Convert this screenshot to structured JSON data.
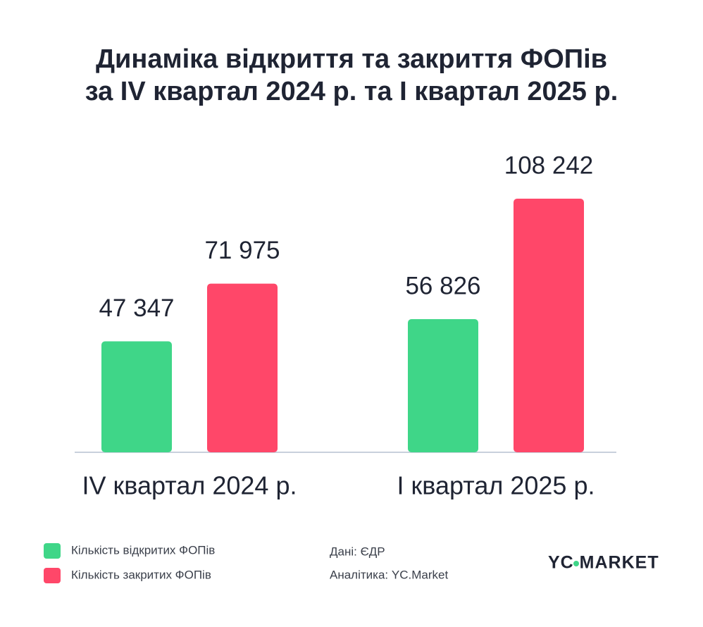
{
  "chart_data": {
    "type": "bar",
    "title": [
      "Динаміка відкриття та закриття ФОПів",
      "за IV квартал 2024 р. та I квартал 2025 р."
    ],
    "categories": [
      "IV квартал 2024 р.",
      "I квартал 2025 р."
    ],
    "series": [
      {
        "name": "Кількість відкритих ФОПів",
        "color": "#3fd688",
        "values": [
          47347,
          56826
        ],
        "value_labels": [
          "47 347",
          "56 826"
        ]
      },
      {
        "name": "Кількість закритих ФОПів",
        "color": "#ff4769",
        "values": [
          71975,
          108242
        ],
        "value_labels": [
          "71 975",
          "108 242"
        ]
      }
    ],
    "sources": [
      "Дані: ЄДР",
      "Аналітика: YC.Market"
    ],
    "logo": "YC MARKET"
  }
}
